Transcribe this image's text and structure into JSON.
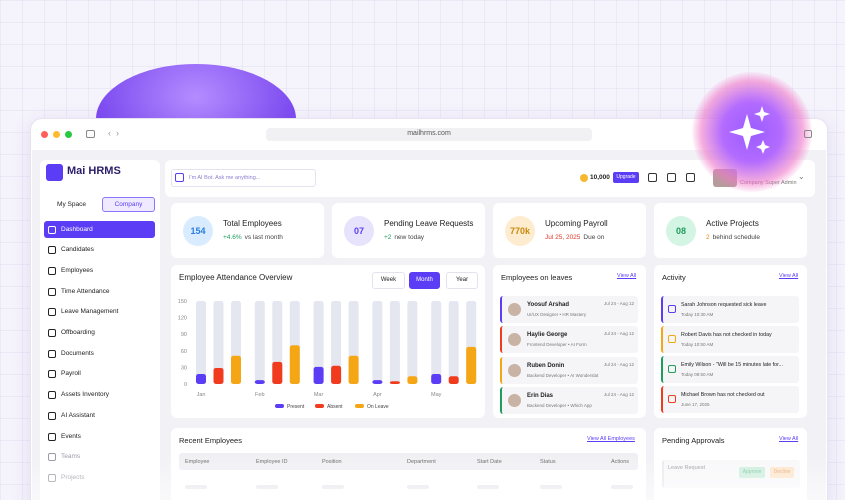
{
  "browser": {
    "url": "mailhrms.com"
  },
  "brand": {
    "name": "Mai HRMS"
  },
  "tabs": [
    "My Space",
    "Company"
  ],
  "nav": [
    "Dashboard",
    "Candidates",
    "Employees",
    "Time Attendance",
    "Leave Management",
    "Offboarding",
    "Documents",
    "Payroll",
    "Assets Inventory",
    "AI Assistant",
    "Events",
    "Teams",
    "Projects"
  ],
  "header": {
    "search_placeholder": "I'm AI Bot. Ask me anything...",
    "credits": "10,000",
    "upgrade": "Upgrade",
    "role": "Company Super Admin"
  },
  "stats": [
    {
      "value": "154",
      "label": "Total Employees",
      "delta": "+4.6%",
      "note": "vs last month"
    },
    {
      "value": "07",
      "label": "Pending Leave Requests",
      "delta": "+2",
      "note": "new today"
    },
    {
      "value": "770k",
      "label": "Upcoming Payroll",
      "delta": "Jul 25, 2025",
      "note": "Due on"
    },
    {
      "value": "08",
      "label": "Active Projects",
      "delta": "2",
      "note": "behind schedule"
    }
  ],
  "chart_data": {
    "type": "bar",
    "title": "Employee Attendance Overview",
    "periods": [
      "Week",
      "Month",
      "Year"
    ],
    "selected_period": 1,
    "categories": [
      "Jan",
      "Feb",
      "Mar",
      "Apr",
      "May"
    ],
    "series": [
      {
        "name": "Present",
        "color": "#5b3df5",
        "values": [
          18,
          7,
          31,
          7,
          18
        ]
      },
      {
        "name": "Absent",
        "color": "#f03b1f",
        "values": [
          29,
          40,
          33,
          5,
          14
        ]
      },
      {
        "name": "On Leave",
        "color": "#f5a614",
        "values": [
          51,
          70,
          51,
          14,
          67
        ]
      }
    ],
    "ylim": [
      0,
      150
    ],
    "yticks": [
      0,
      30,
      60,
      90,
      120,
      150
    ]
  },
  "leaves": {
    "title": "Employees on leaves",
    "view_all": "View All",
    "items": [
      {
        "name": "Yoosuf Arshad",
        "dates": "Jul 24 - Aug 12",
        "role": "UI/UX Designer • HR Mastery"
      },
      {
        "name": "Haylie George",
        "dates": "Jul 24 - Aug 12",
        "role": "Frontend Developer • AI Form"
      },
      {
        "name": "Ruben Donin",
        "dates": "Jul 24 - Aug 12",
        "role": "Backend Developer • AI Wonderslat"
      },
      {
        "name": "Erin Dias",
        "dates": "Jul 24 - Aug 12",
        "role": "Backend Developer • Which App"
      }
    ]
  },
  "activity": {
    "title": "Activity",
    "view_all": "View All",
    "items": [
      {
        "text": "Sarah Johnson requested sick leave",
        "time": "Today 10:30 AM"
      },
      {
        "text": "Robert Davis has not checked in today",
        "time": "Today 10:50 AM"
      },
      {
        "text": "Emily Wilson - \"Will be 15 minutes late for...",
        "time": "Today 09:50 AM"
      },
      {
        "text": "Michael Brown has not checked out",
        "time": "June 17, 2025"
      }
    ]
  },
  "recent": {
    "title": "Recent Employees",
    "view_all": "View All Employees",
    "columns": [
      "Employee",
      "Employee ID",
      "Position",
      "Department",
      "Start Date",
      "Status",
      "Actions"
    ]
  },
  "approvals": {
    "title": "Pending Approvals",
    "view_all": "View All",
    "item": "Leave Request",
    "actions": [
      "Approve",
      "Decline"
    ]
  }
}
